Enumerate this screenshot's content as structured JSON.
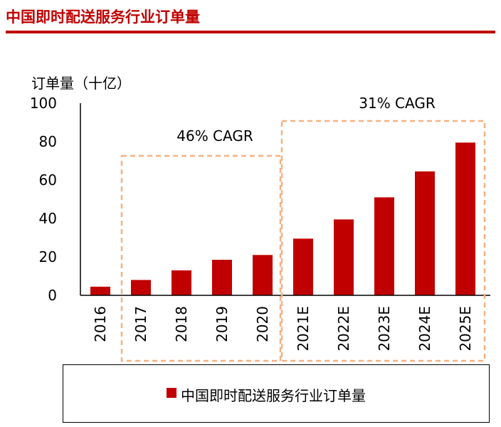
{
  "title": "中国即时配送服务行业订单量",
  "colors": {
    "bar": "#c00000",
    "title": "#c00000",
    "bracket": "#f4b183"
  },
  "chart_data": {
    "type": "bar",
    "ylabel": "订单量（十亿）",
    "ylim": [
      0,
      100
    ],
    "yticks": [
      0,
      20,
      40,
      60,
      80,
      100
    ],
    "categories": [
      "2016",
      "2017",
      "2018",
      "2019",
      "2020",
      "2021E",
      "2022E",
      "2023E",
      "2024E",
      "2025E"
    ],
    "series": [
      {
        "name": "中国即时配送服务行业订单量",
        "values": [
          4.5,
          8,
          13,
          18.5,
          21,
          29.5,
          39.5,
          51,
          64.5,
          79.5
        ]
      }
    ],
    "annotations": [
      {
        "text": "46% CAGR",
        "from": "2017",
        "to": "2020"
      },
      {
        "text": "31% CAGR",
        "from": "2021E",
        "to": "2025E"
      }
    ],
    "legend": "bottom"
  }
}
